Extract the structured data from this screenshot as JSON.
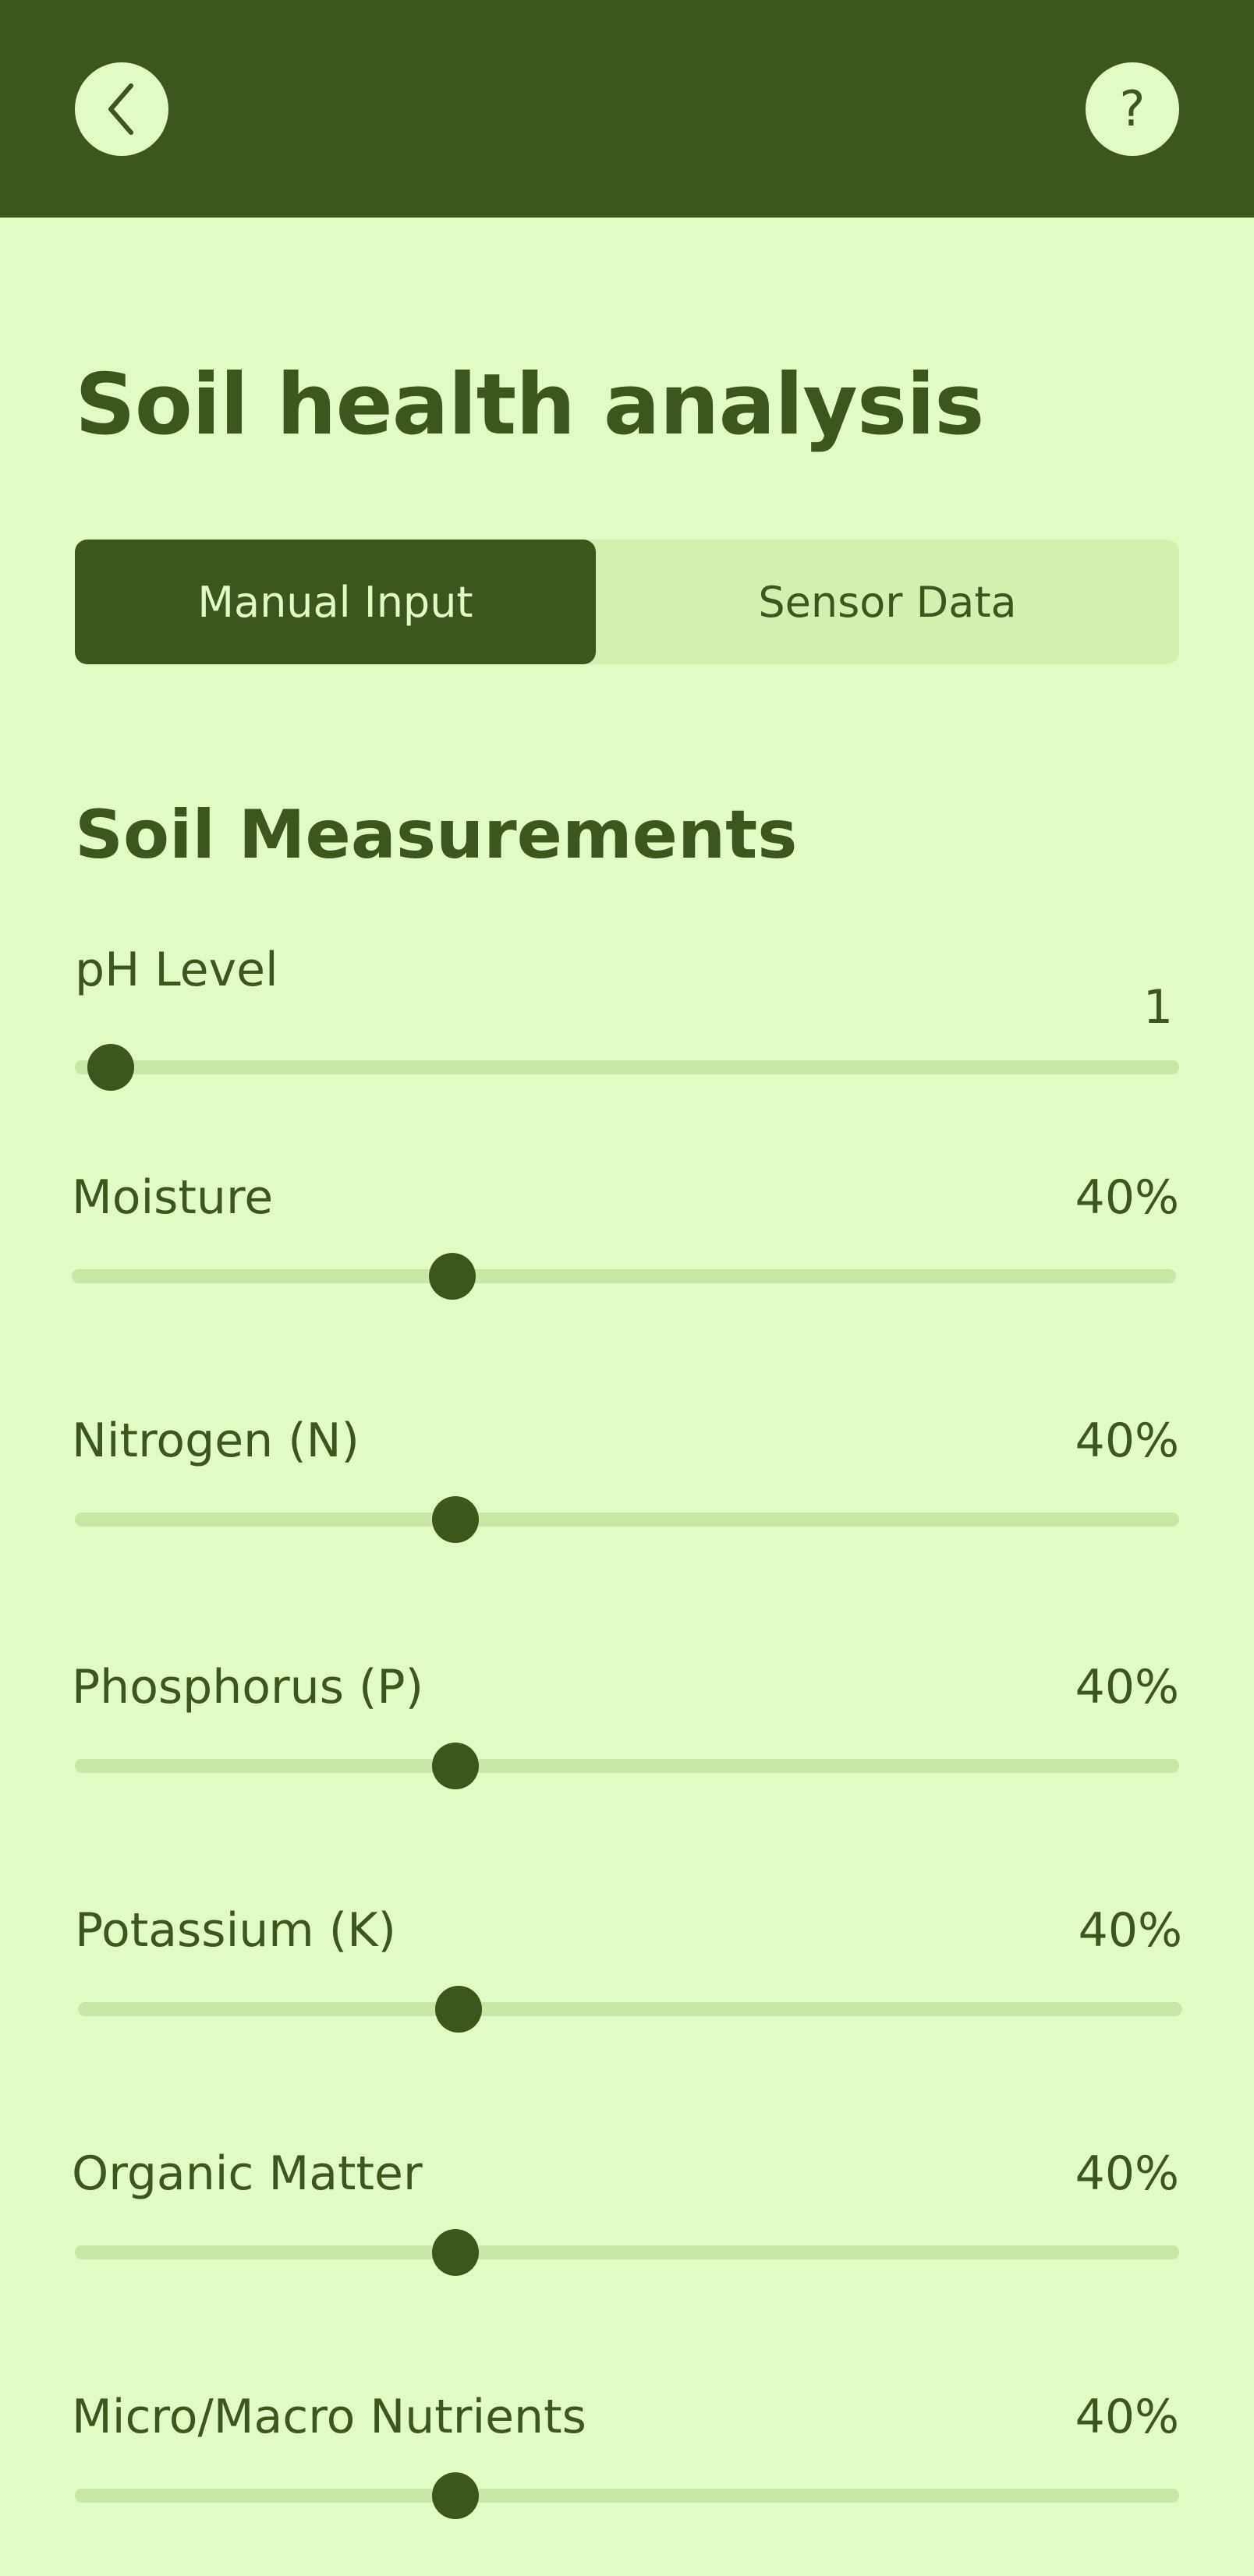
{
  "header": {
    "back_icon": "chevron-left-icon",
    "help_label": "?",
    "help_icon": "question-mark-icon",
    "background_color": "#3d561b"
  },
  "page": {
    "title": "Soil health analysis"
  },
  "tabs": {
    "items": [
      {
        "label": "Manual Input",
        "selected": true
      },
      {
        "label": "Sensor Data",
        "selected": false
      }
    ]
  },
  "section": {
    "title": "Soil Measurements"
  },
  "measurements": [
    {
      "label": "pH Level",
      "value": "1",
      "level": 0.0
    },
    {
      "label": "Moisture",
      "value": "40%",
      "level": 0.33
    },
    {
      "label": "Nitrogen (N)",
      "value": "40%",
      "level": 0.33
    },
    {
      "label": "Phosphorus (P)",
      "value": "40%",
      "level": 0.33
    },
    {
      "label": "Potassium (K)",
      "value": "40%",
      "level": 0.33
    },
    {
      "label": "Organic Matter",
      "value": "40%",
      "level": 0.33
    },
    {
      "label": "Micro/Macro Nutrients",
      "value": "40%",
      "level": 0.33
    }
  ],
  "colors": {
    "background": "#e0fcc4",
    "accent": "#3d561b",
    "track": "#c9e7a6",
    "tab_inactive": "#d3f0b1"
  }
}
